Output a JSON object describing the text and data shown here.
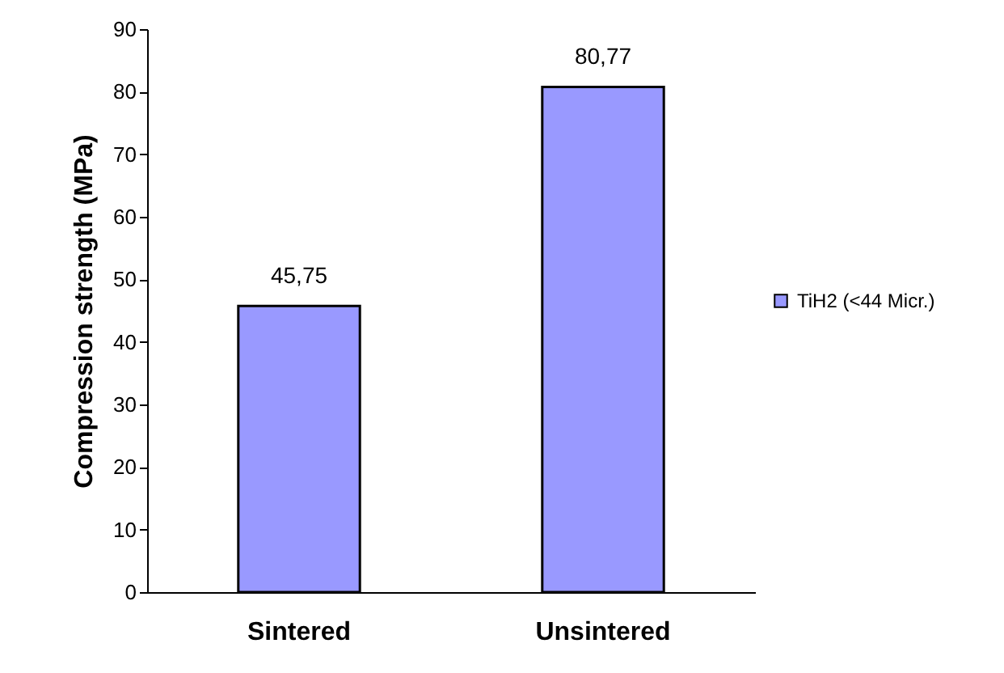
{
  "chart_data": {
    "type": "bar",
    "ylabel": "Compression strength (MPa)",
    "categories": [
      "Sintered",
      "Unsintered"
    ],
    "series": [
      {
        "name": "TiH2 (<44 Micr.)",
        "color": "#9999ff",
        "values": [
          45.75,
          80.77
        ],
        "value_labels": [
          "45,75",
          "80,77"
        ]
      }
    ],
    "ylim": [
      0,
      90
    ],
    "yticks": [
      0,
      10,
      20,
      30,
      40,
      50,
      60,
      70,
      80,
      90
    ],
    "grid": false,
    "legend": "right"
  }
}
